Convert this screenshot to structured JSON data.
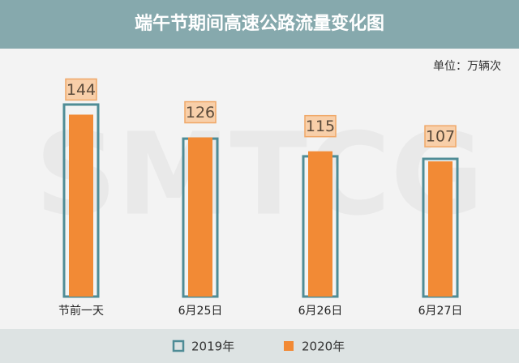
{
  "chart_data": {
    "type": "bar",
    "title": "端午节期间高速公路流量变化图",
    "unit": "单位：万辆次",
    "watermark": "SMTCG",
    "categories": [
      "节前一天",
      "6月25日",
      "6月26日",
      "6月27日"
    ],
    "series": [
      {
        "name": "2019年",
        "color": "#4f8c96",
        "values": [
          152,
          125,
          111,
          109
        ]
      },
      {
        "name": "2020年",
        "color": "#f28a35",
        "values": [
          144,
          126,
          115,
          107
        ]
      }
    ]
  }
}
